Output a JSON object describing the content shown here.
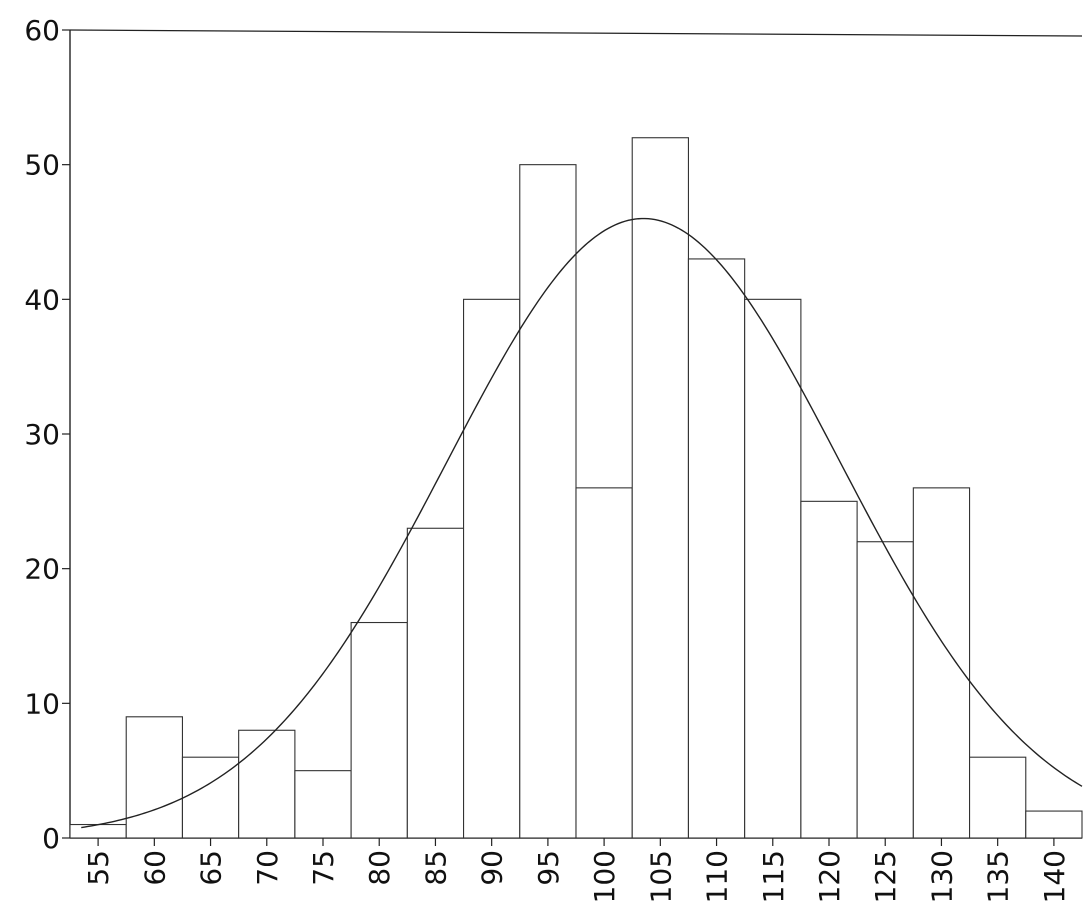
{
  "chart_data": {
    "type": "bar",
    "title": "",
    "xlabel": "",
    "ylabel": "",
    "ylim": [
      0,
      60
    ],
    "xlim": [
      52.5,
      142.5
    ],
    "bin_width": 5,
    "categories": [
      "55",
      "60",
      "65",
      "70",
      "75",
      "80",
      "85",
      "90",
      "95",
      "100",
      "105",
      "110",
      "115",
      "120",
      "125",
      "130",
      "135",
      "140"
    ],
    "values": [
      1,
      9,
      6,
      8,
      5,
      16,
      23,
      40,
      50,
      26,
      52,
      43,
      40,
      25,
      22,
      26,
      6,
      2
    ],
    "y_ticks": [
      "0",
      "10",
      "20",
      "30",
      "40",
      "50",
      "60"
    ],
    "overlay": {
      "type": "normal_curve",
      "peak": 46,
      "mean": 103.5,
      "sd": 17.5
    },
    "grid": false,
    "legend": "none"
  }
}
